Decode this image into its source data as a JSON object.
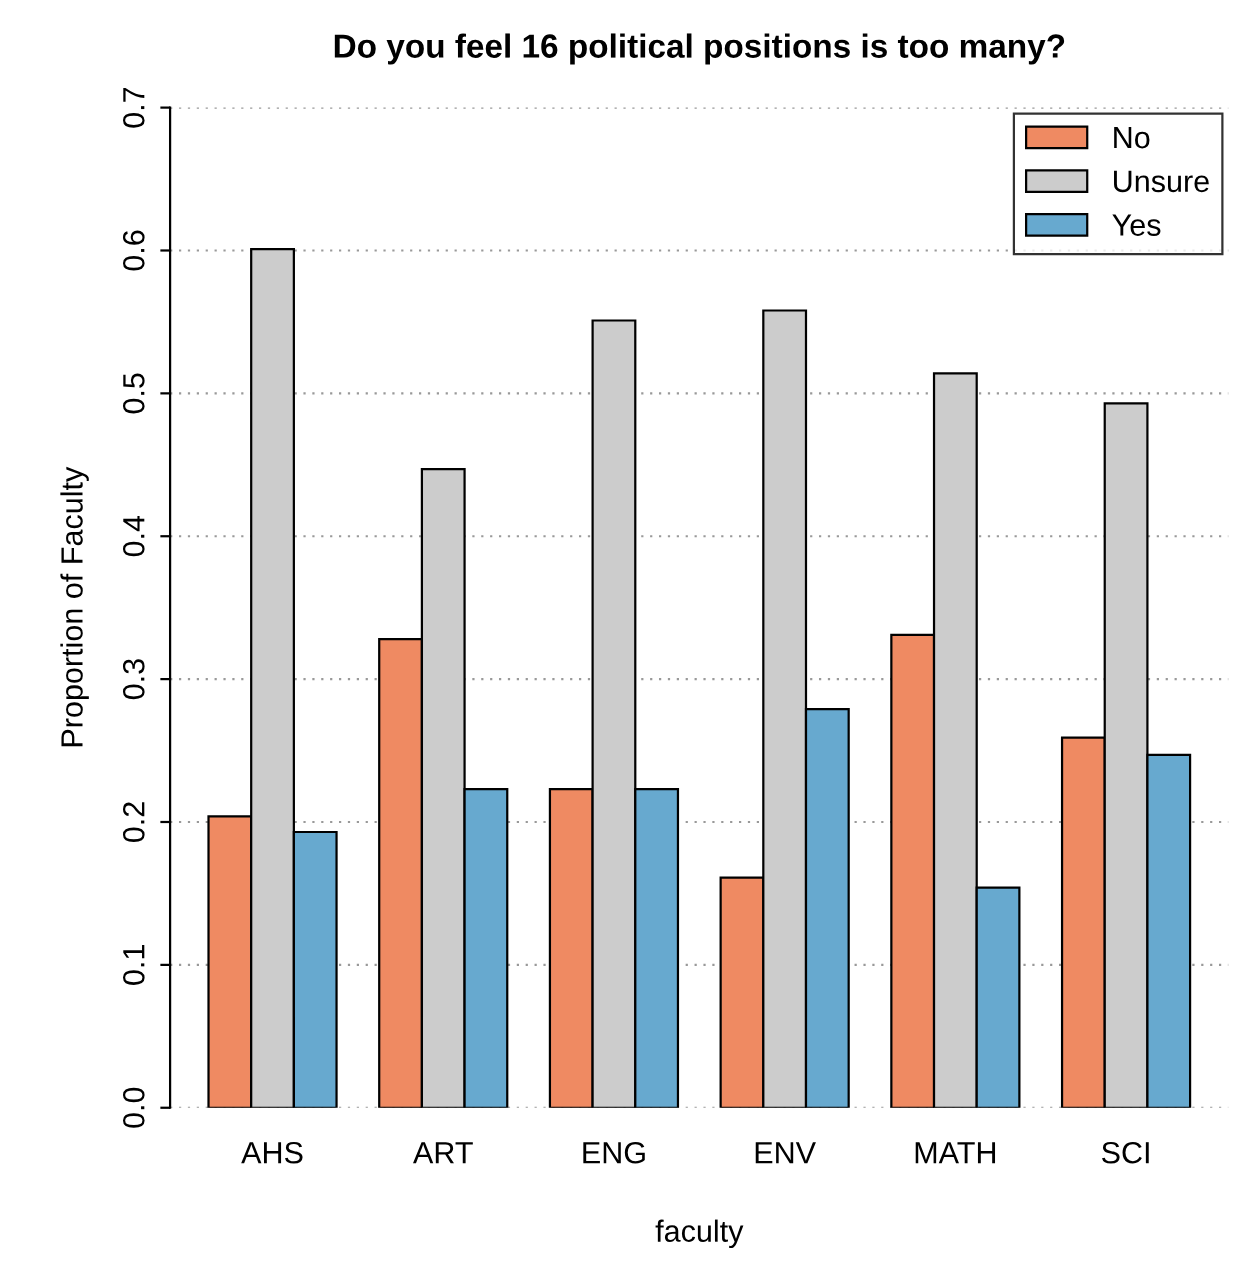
{
  "chart_data": {
    "type": "bar",
    "title": "Do you feel 16 political positions is too many?",
    "xlabel": "faculty",
    "ylabel": "Proportion of Faculty",
    "categories": [
      "AHS",
      "ART",
      "ENG",
      "ENV",
      "MATH",
      "SCI"
    ],
    "series": [
      {
        "name": "No",
        "color": "#ef8a62",
        "values": [
          0.204,
          0.328,
          0.223,
          0.161,
          0.331,
          0.259
        ]
      },
      {
        "name": "Unsure",
        "color": "#cccccc",
        "values": [
          0.601,
          0.447,
          0.551,
          0.558,
          0.514,
          0.493
        ]
      },
      {
        "name": "Yes",
        "color": "#67a9cf",
        "values": [
          0.193,
          0.223,
          0.223,
          0.279,
          0.154,
          0.247
        ]
      }
    ],
    "ylim": [
      0,
      0.7
    ],
    "yticks": [
      {
        "value": 0,
        "label": "0.0"
      },
      0.1,
      0.2,
      0.3,
      0.4,
      0.5,
      0.6,
      0.7
    ],
    "grid": "y",
    "legend": "top right"
  }
}
